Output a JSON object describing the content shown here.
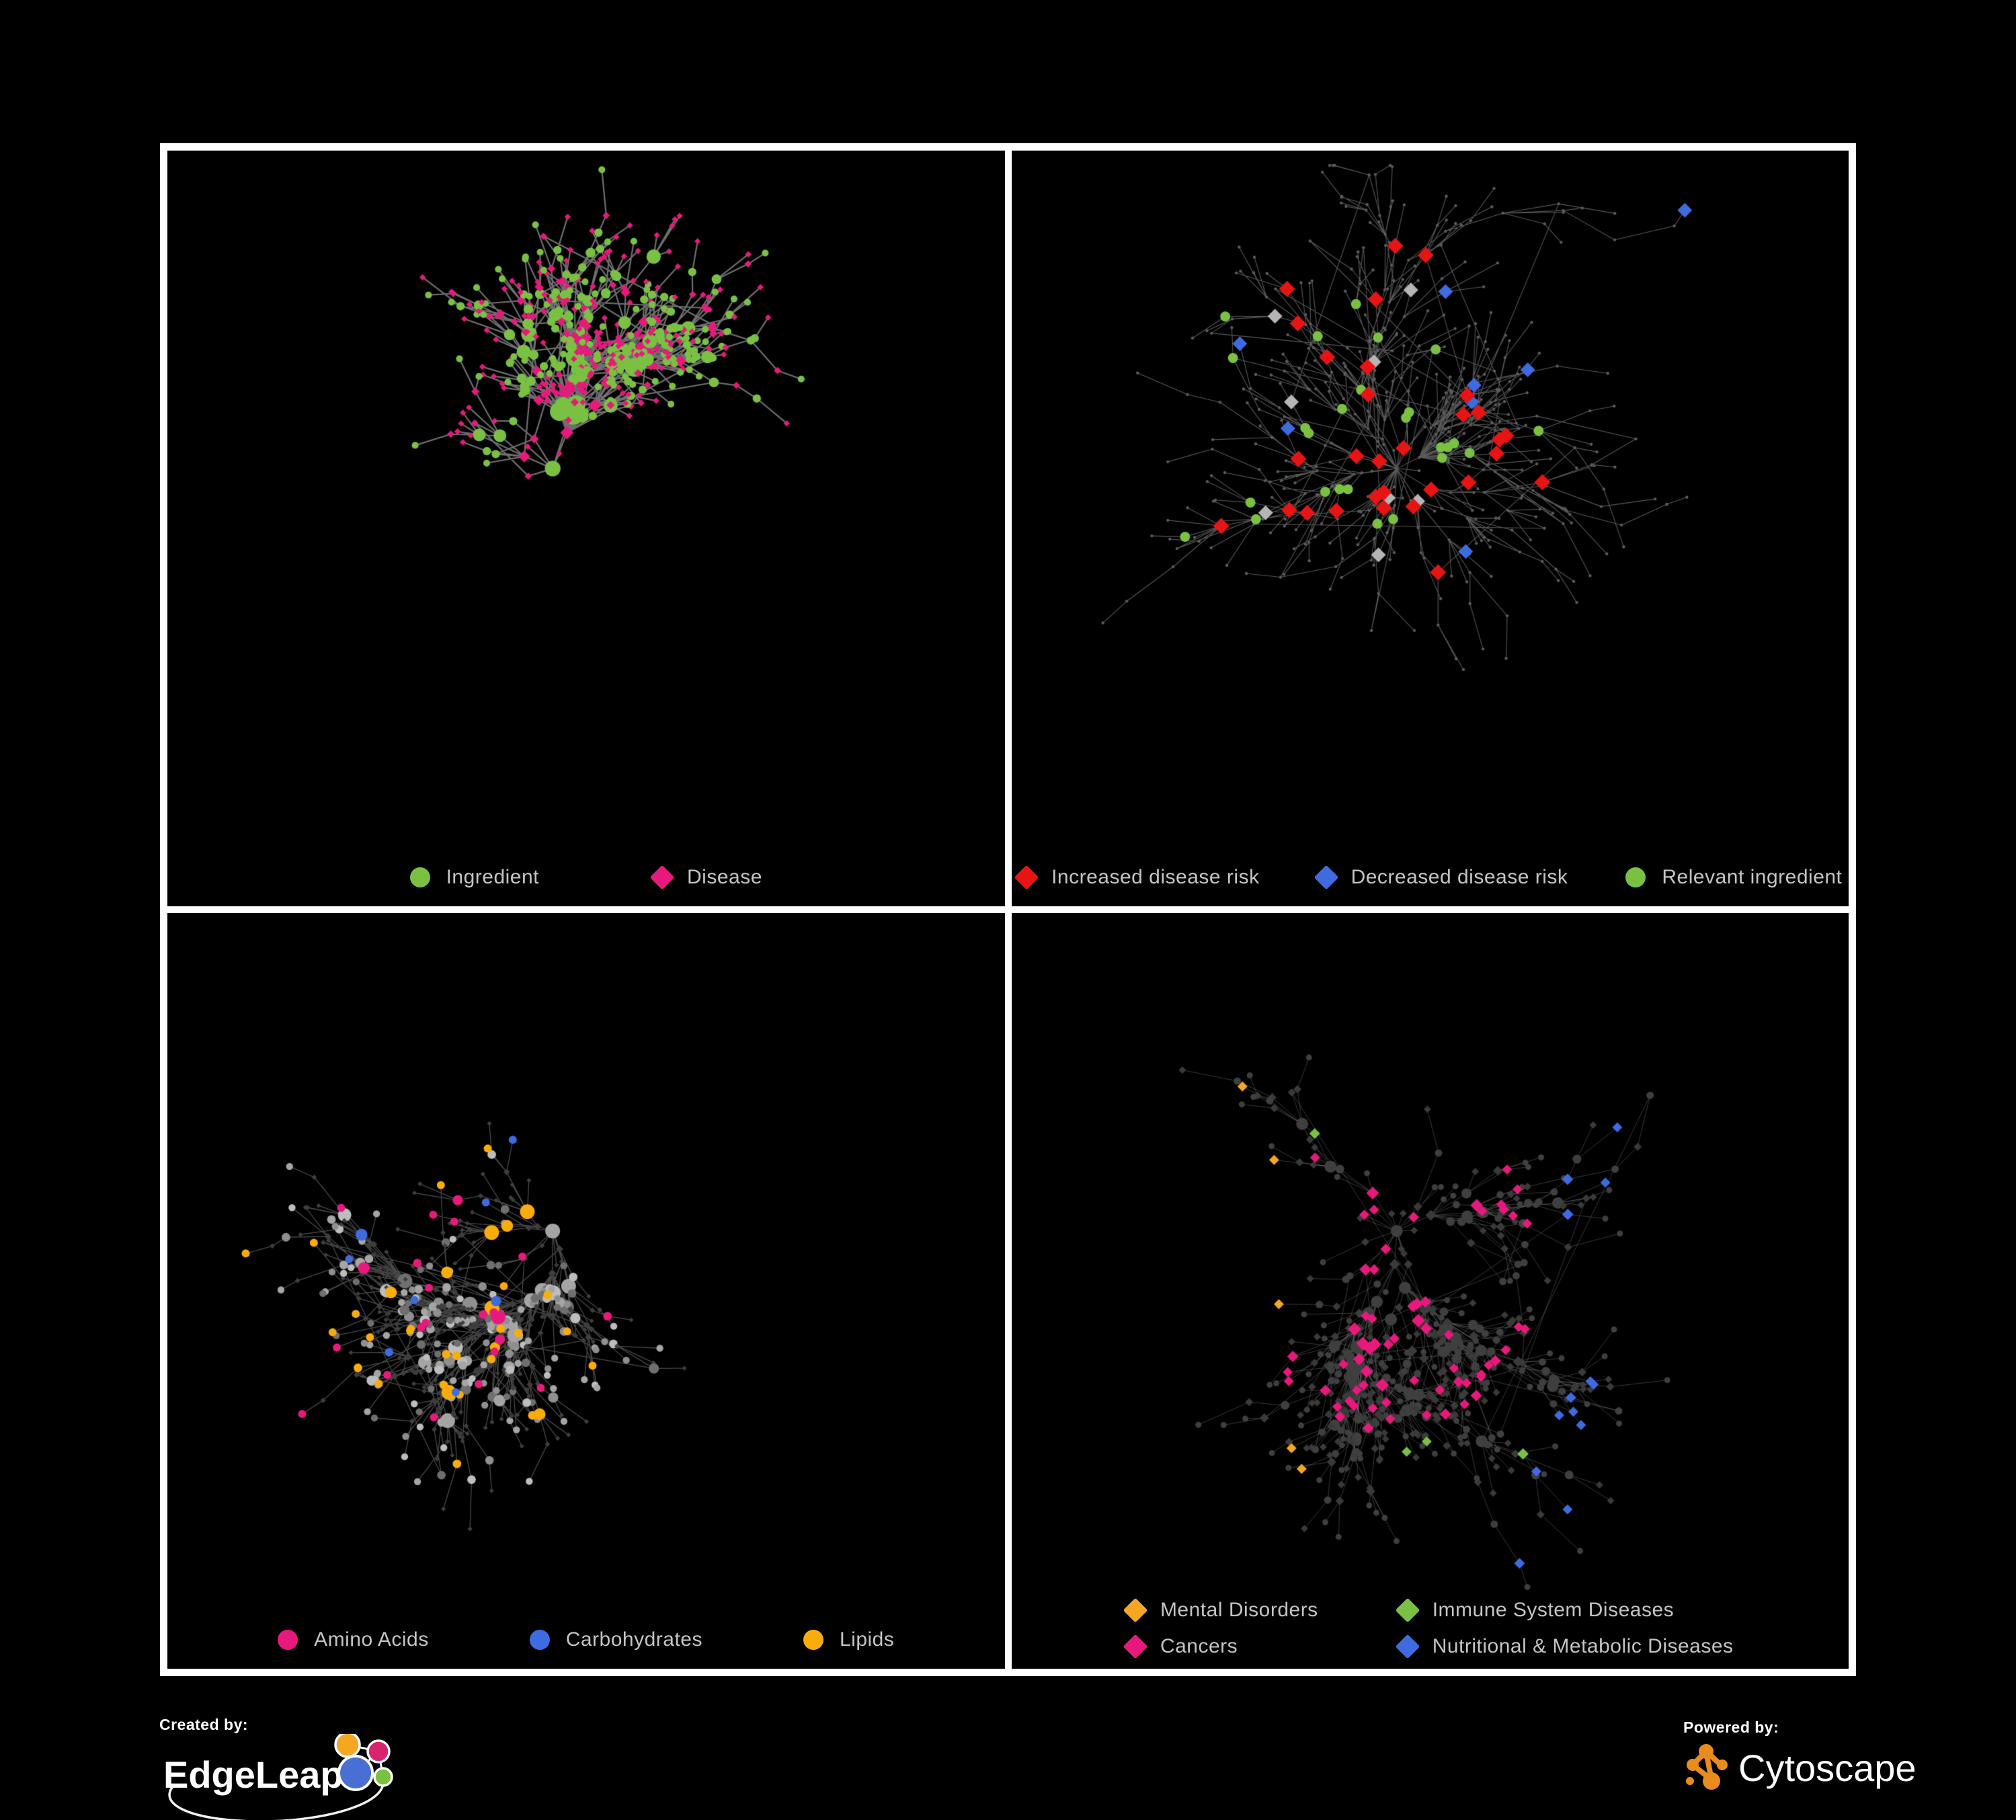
{
  "figure": {
    "type": "network-visualization-grid",
    "background": "#000000",
    "frame_color": "#ffffff"
  },
  "panels": [
    {
      "id": "ingredient-disease",
      "legend": [
        {
          "label": "Ingredient",
          "shape": "circle",
          "color": "#7ac143"
        },
        {
          "label": "Disease",
          "shape": "diamond",
          "color": "#e8197d"
        }
      ],
      "network": {
        "seed": 1337,
        "nodes": 520,
        "extra_edges": 26,
        "spread": 1.0,
        "edge_color": "#6f6f6f",
        "edge_width": 2.2,
        "ingredient_color": "#7ac143",
        "disease_color": "#e8197d"
      }
    },
    {
      "id": "disease-risk",
      "legend": [
        {
          "label": "Increased disease risk",
          "shape": "diamond",
          "color": "#e81414"
        },
        {
          "label": "Decreased disease risk",
          "shape": "diamond",
          "color": "#3e6be0"
        },
        {
          "label": "Relevant ingredient",
          "shape": "circle",
          "color": "#7ac143"
        }
      ],
      "network": {
        "seed": 2024,
        "nodes": 560,
        "extra_edges": 22,
        "spread": 1.22,
        "edge_color": "#585858",
        "edge_width": 1.1,
        "base_node_color": "#5c5c5c",
        "increased_color": "#e81414",
        "decreased_color": "#3e6be0",
        "neutral_color": "#b5b5b5",
        "ingredient_color": "#7ac143",
        "counts": {
          "increased": 30,
          "decreased": 9,
          "neutral": 8,
          "ingredient": 26
        }
      }
    },
    {
      "id": "nutrient-classes",
      "legend": [
        {
          "label": "Amino Acids",
          "shape": "circle",
          "color": "#e8197d"
        },
        {
          "label": "Carbohydrates",
          "shape": "circle",
          "color": "#3e6be0"
        },
        {
          "label": "Lipids",
          "shape": "circle",
          "color": "#f9ad0c"
        }
      ],
      "network": {
        "seed": 777,
        "nodes": 540,
        "extra_edges": 24,
        "spread": 1.0,
        "edge_color": "rgba(175,175,175,0.42)",
        "edge_width": 1.3,
        "gray_node_colors": [
          "#8f8f8f",
          "#a5a5a5",
          "#bdbdbd",
          "#6f6f6f"
        ],
        "disease_color": "#3e3e3e",
        "amino_color": "#e8197d",
        "carb_color": "#3e6be0",
        "lipid_color": "#f9ad0c"
      }
    },
    {
      "id": "disease-categories",
      "legend": [
        {
          "label": "Mental Disorders",
          "shape": "diamond",
          "color": "#f5a623"
        },
        {
          "label": "Immune System Diseases",
          "shape": "diamond",
          "color": "#7ac143"
        },
        {
          "label": "Cancers",
          "shape": "diamond",
          "color": "#e8197d"
        },
        {
          "label": "Nutritional & Metabolic Diseases",
          "shape": "diamond",
          "color": "#3e6be0"
        }
      ],
      "network": {
        "seed": 4242,
        "nodes": 560,
        "extra_edges": 24,
        "spread": 1.12,
        "edge_color": "rgba(160,160,160,0.35)",
        "edge_width": 1.0,
        "base_diamond_color": "#3a3a3a",
        "ingredient_color": "#3f3f3f",
        "mental_color": "#f5a623",
        "immune_color": "#7ac143",
        "cancer_color": "#e8197d",
        "metabolic_color": "#3e6be0"
      }
    }
  ],
  "footer": {
    "created_by_label": "Created by:",
    "edgeleap_brand": "EdgeLeap",
    "powered_by_label": "Powered by:",
    "cytoscape_brand": "Cytoscape",
    "edgeleap_colors": {
      "blue": "#4a6fd4",
      "orange": "#f5a623",
      "magenta": "#d6246e",
      "green": "#7ac143"
    },
    "cytoscape_orange": "#e88c1e"
  }
}
